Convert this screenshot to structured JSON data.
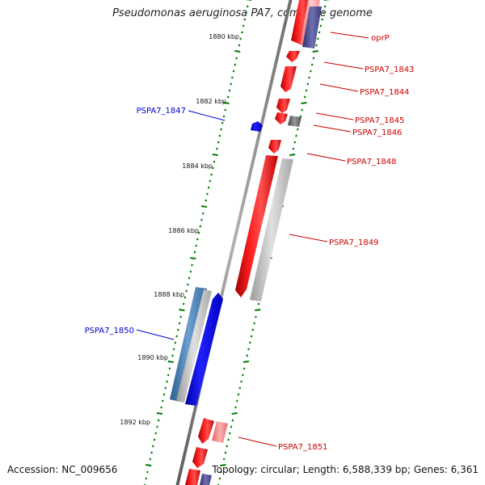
{
  "title": "Pseudomonas aeruginosa PA7, complete genome",
  "accession_text": "Accession: NC_009656",
  "topology_text": "Topology: circular; Length: 6,588,339 bp; Genes: 6,361",
  "colors": {
    "backbone": "#808080",
    "forward_cds": "#ff0000",
    "reverse_cds": "#0000ff",
    "tick_marks": "#007a00",
    "forward_label": "#cc0000",
    "reverse_label": "#0000cc"
  },
  "scale_labels": [
    "1880 kbp",
    "1882 kbp",
    "1884 kbp",
    "1886 kbp",
    "1888 kbp",
    "1890 kbp",
    "1892 kbp"
  ],
  "gene_labels": [
    {
      "text": "oprP",
      "strand": "forward"
    },
    {
      "text": "PSPA7_1843",
      "strand": "forward"
    },
    {
      "text": "PSPA7_1844",
      "strand": "forward"
    },
    {
      "text": "PSPA7_1845",
      "strand": "forward"
    },
    {
      "text": "PSPA7_1846",
      "strand": "forward"
    },
    {
      "text": "PSPA7_1847",
      "strand": "reverse"
    },
    {
      "text": "PSPA7_1848",
      "strand": "forward"
    },
    {
      "text": "PSPA7_1849",
      "strand": "forward"
    },
    {
      "text": "PSPA7_1850",
      "strand": "reverse"
    },
    {
      "text": "PSPA7_1851",
      "strand": "forward"
    }
  ]
}
